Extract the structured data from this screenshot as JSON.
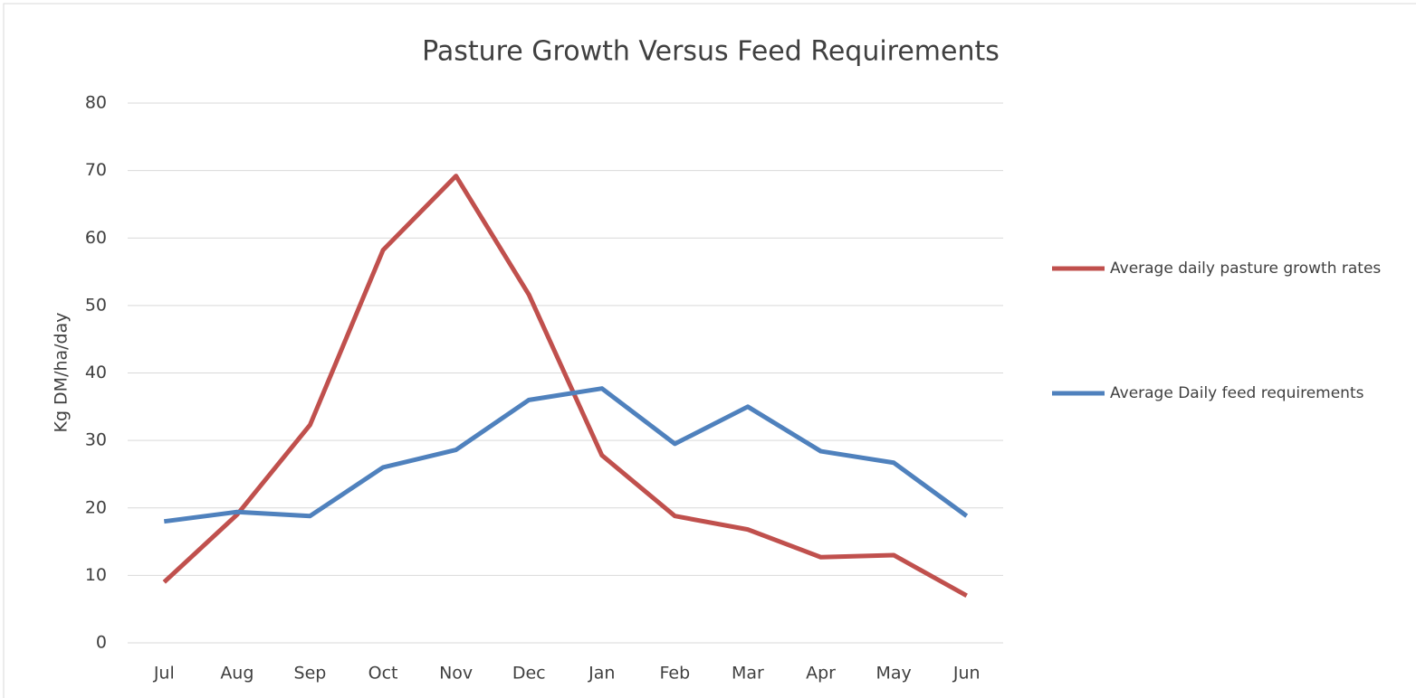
{
  "chart_data": {
    "type": "line",
    "title": "Pasture Growth Versus Feed Requirements",
    "y_label": "Kg DM/ha/day",
    "categories": [
      "Jul",
      "Aug",
      "Sep",
      "Oct",
      "Nov",
      "Dec",
      "Jan",
      "Feb",
      "Mar",
      "Apr",
      "May",
      "Jun"
    ],
    "series": [
      {
        "name": "Average daily pasture growth rates",
        "color": "#c0504d",
        "values": [
          9,
          19,
          32.3,
          58.2,
          69.2,
          51.6,
          27.8,
          18.8,
          16.8,
          12.7,
          13,
          7
        ]
      },
      {
        "name": "Average Daily feed requirements",
        "color": "#4f81bd",
        "values": [
          18,
          19.4,
          18.8,
          26,
          28.6,
          36,
          37.7,
          29.5,
          35,
          28.4,
          26.7,
          18.8
        ]
      }
    ],
    "ylim": [
      0,
      80
    ],
    "yticks": [
      0,
      10,
      20,
      30,
      40,
      50,
      60,
      70,
      80
    ],
    "grid": true,
    "legend": "right"
  }
}
